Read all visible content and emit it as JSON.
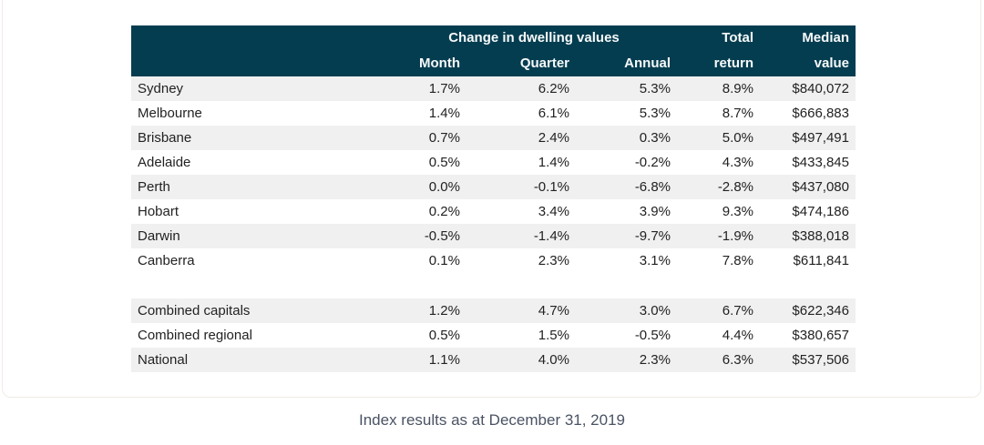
{
  "chart_data": {
    "type": "table",
    "title": "",
    "group_header": "Change in dwelling values",
    "header_line1": {
      "total": "Total",
      "median": "Median"
    },
    "header_line2": {
      "month": "Month",
      "quarter": "Quarter",
      "annual": "Annual",
      "return": "return",
      "value": "value"
    },
    "columns": [
      "",
      "Month",
      "Quarter",
      "Annual",
      "Total return",
      "Median value"
    ],
    "capital_rows": [
      [
        "Sydney",
        "1.7%",
        "6.2%",
        "5.3%",
        "8.9%",
        "$840,072"
      ],
      [
        "Melbourne",
        "1.4%",
        "6.1%",
        "5.3%",
        "8.7%",
        "$666,883"
      ],
      [
        "Brisbane",
        "0.7%",
        "2.4%",
        "0.3%",
        "5.0%",
        "$497,491"
      ],
      [
        "Adelaide",
        "0.5%",
        "1.4%",
        "-0.2%",
        "4.3%",
        "$433,845"
      ],
      [
        "Perth",
        "0.0%",
        "-0.1%",
        "-6.8%",
        "-2.8%",
        "$437,080"
      ],
      [
        "Hobart",
        "0.2%",
        "3.4%",
        "3.9%",
        "9.3%",
        "$474,186"
      ],
      [
        "Darwin",
        "-0.5%",
        "-1.4%",
        "-9.7%",
        "-1.9%",
        "$388,018"
      ],
      [
        "Canberra",
        "0.1%",
        "2.3%",
        "3.1%",
        "7.8%",
        "$611,841"
      ]
    ],
    "summary_rows": [
      [
        "Combined capitals",
        "1.2%",
        "4.7%",
        "3.0%",
        "6.7%",
        "$622,346"
      ],
      [
        "Combined regional",
        "0.5%",
        "1.5%",
        "-0.5%",
        "4.4%",
        "$380,657"
      ],
      [
        "National",
        "1.1%",
        "4.0%",
        "2.3%",
        "6.3%",
        "$537,506"
      ]
    ],
    "legend_position": "none",
    "grid": "off"
  },
  "caption": "Index results as at December 31, 2019",
  "colors": {
    "header_bg": "#053d50",
    "header_text": "#f7fafa",
    "row_stripe": "#f0f0f0",
    "body_text": "#222222",
    "caption_text": "#4a5363",
    "card_border": "#f1ebe6"
  }
}
